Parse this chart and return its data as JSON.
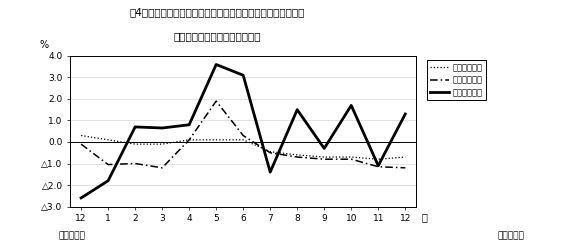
{
  "title_line1": "第4図　　賃金、労働時間、常用雇用指数対前年同月比の推移",
  "title_line2": "（規横５人以上　調査産業計）",
  "ylabel": "%",
  "xlabel_right": "月",
  "bottom_left": "平成１８年",
  "bottom_right": "平成１９年",
  "x_labels": [
    "12",
    "1",
    "2",
    "3",
    "4",
    "5",
    "6",
    "7",
    "8",
    "9",
    "10",
    "11",
    "12"
  ],
  "x_values": [
    0,
    1,
    2,
    3,
    4,
    5,
    6,
    7,
    8,
    9,
    10,
    11,
    12
  ],
  "ylim": [
    -3.0,
    4.0
  ],
  "ytick_vals": [
    -3.0,
    -2.0,
    -1.0,
    0.0,
    1.0,
    2.0,
    3.0,
    4.0
  ],
  "ytick_labels": [
    "△3.0",
    "△2.0",
    "△1.0",
    "0.0",
    "1.0",
    "2.0",
    "3.0",
    "4.0"
  ],
  "wage_label": "現金給与総額",
  "hours_label": "総実労働時間",
  "employ_label": "常用雇用指数",
  "wage_values": [
    -2.6,
    -1.8,
    0.7,
    0.65,
    0.8,
    3.6,
    3.1,
    -1.4,
    1.5,
    -0.3,
    1.7,
    -1.1,
    1.3
  ],
  "hours_values": [
    -0.1,
    -1.05,
    -1.0,
    -1.2,
    0.1,
    1.9,
    0.3,
    -0.5,
    -0.7,
    -0.8,
    -0.8,
    -1.15,
    -1.2
  ],
  "employ_values": [
    0.3,
    0.1,
    -0.1,
    -0.1,
    0.1,
    0.1,
    0.1,
    -0.45,
    -0.6,
    -0.7,
    -0.7,
    -0.8,
    -0.7
  ],
  "background_color": "#ffffff"
}
